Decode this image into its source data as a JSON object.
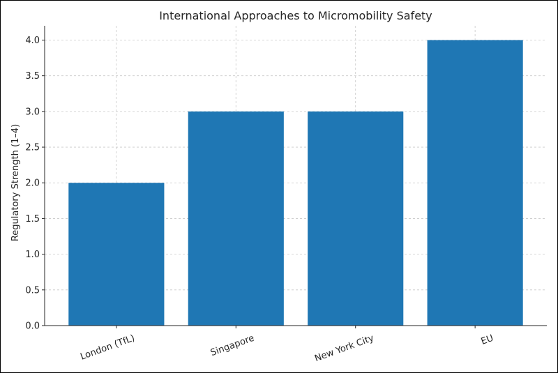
{
  "chart_data": {
    "type": "bar",
    "title": "International Approaches to Micromobility Safety",
    "xlabel": "",
    "ylabel": "Regulatory Strength (1–4)",
    "categories": [
      "London (TfL)",
      "Singapore",
      "New York City",
      "EU"
    ],
    "values": [
      2,
      3,
      3,
      4
    ],
    "ylim": [
      0,
      4.2
    ],
    "yticks": [
      "0.0",
      "0.5",
      "1.0",
      "1.5",
      "2.0",
      "2.5",
      "3.0",
      "3.5",
      "4.0"
    ],
    "bar_color": "#1f77b4",
    "grid": true,
    "legend": "none"
  }
}
